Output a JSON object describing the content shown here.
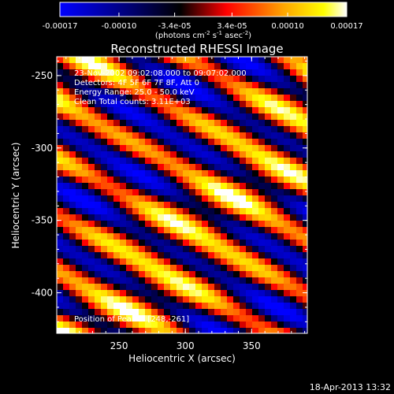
{
  "colorbar": {
    "tick_labels": [
      "-0.00017",
      "-0.00010",
      "-3.4e-05",
      "3.4e-05",
      "0.00010",
      "0.00017"
    ],
    "tick_values": [
      -0.00017,
      -0.0001,
      -3.4e-05,
      3.4e-05,
      0.0001,
      0.00017
    ],
    "range": [
      -0.00017,
      0.00017
    ],
    "units_prefix": "(photons cm",
    "units_sup1": "-2",
    "units_mid": " s",
    "units_sup2": "-1",
    "units_end": " asec",
    "units_sup3": "-2",
    "units_close": ")"
  },
  "image": {
    "title": "Reconstructed RHESSI Image",
    "annotations": [
      "23-Nov-2002 09:02:08.000 to 09:07:02.000",
      "Detectors: 4F 5F 6F 7F 8F, Att 0",
      "Energy Range: 25.0 - 50.0 keV",
      "Clean    Total counts: 3.11E+03"
    ],
    "peak_label": "Position of Peak = [248,-261]",
    "xlabel": "Heliocentric X (arcsec)",
    "ylabel": "Heliocentric Y (arcsec)",
    "xlim": [
      203,
      392
    ],
    "ylim": [
      -428,
      -237
    ],
    "x_ticks": [
      250,
      300,
      350
    ],
    "y_ticks": [
      -250,
      -300,
      -350,
      -400
    ],
    "x_tick_labels": [
      "250",
      "300",
      "350"
    ],
    "y_tick_labels": [
      "-250",
      "-300",
      "-350",
      "-400"
    ],
    "colormap": [
      "#0000ff",
      "#000088",
      "#000000",
      "#ff0000",
      "#ffa500",
      "#ffff00",
      "#ffffff"
    ]
  },
  "timestamp": "18-Apr-2013 13:32"
}
